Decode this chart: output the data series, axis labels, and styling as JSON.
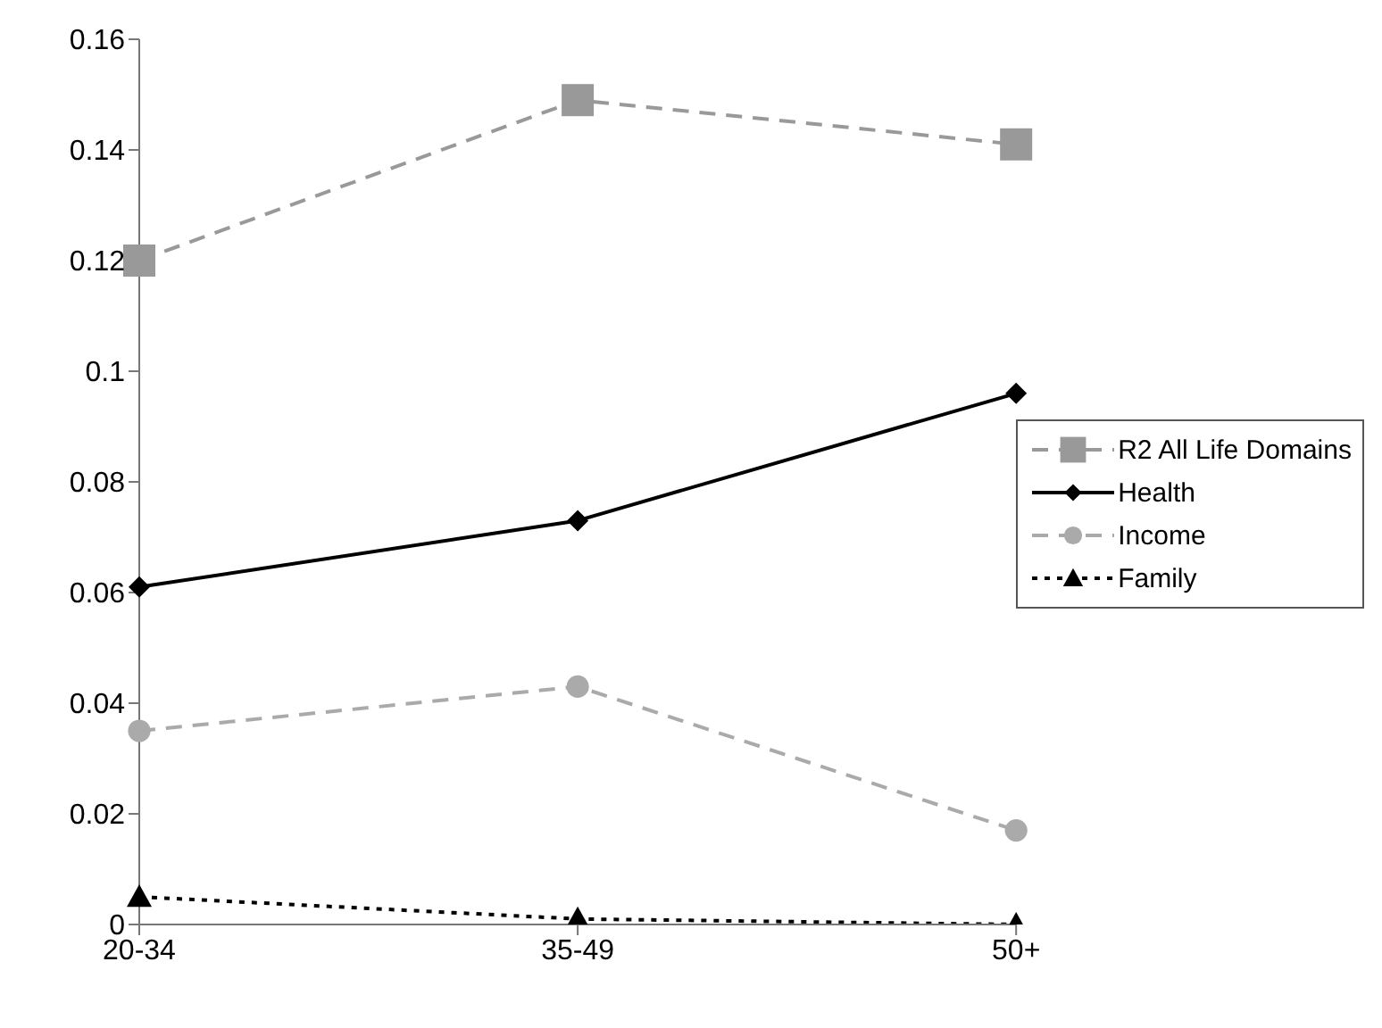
{
  "chart_data": {
    "type": "line",
    "categories": [
      "20-34",
      "35-49",
      "50+"
    ],
    "series": [
      {
        "name": "R2 All Life Domains",
        "color": "#999999",
        "values": [
          0.12,
          0.149,
          0.141
        ],
        "marker": "square",
        "line_style": "dashed"
      },
      {
        "name": "Health",
        "color": "#000000",
        "values": [
          0.061,
          0.073,
          0.096
        ],
        "marker": "diamond",
        "line_style": "solid"
      },
      {
        "name": "Income",
        "color": "#aaaaaa",
        "values": [
          0.035,
          0.043,
          0.017
        ],
        "marker": "circle",
        "line_style": "dashed"
      },
      {
        "name": "Family",
        "color": "#000000",
        "values": [
          0.005,
          0.001,
          0
        ],
        "marker": "triangle",
        "line_style": "dotted"
      }
    ],
    "ylim": [
      0,
      0.16
    ],
    "yticks": [
      0,
      0.02,
      0.04,
      0.06,
      0.08,
      0.1,
      0.12,
      0.14,
      0.16
    ],
    "grid": false,
    "legend": "right"
  }
}
